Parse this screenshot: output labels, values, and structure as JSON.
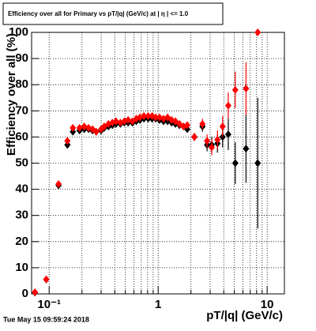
{
  "chart_data": {
    "type": "scatter",
    "title": "Efficiency over all for Primary vs pT/|q| (GeV/c) at | η | <= 1.0",
    "x_label": "pT/|q| (GeV/c)",
    "y_label": "Efficiency over all (%)",
    "timestamp": "Tue May 15 09:59:24 2018",
    "log_x": true,
    "grid": true,
    "xlim": [
      0.069,
      14.4
    ],
    "ylim": [
      0,
      100
    ],
    "xticks": [
      {
        "value": 0.1,
        "label": "10⁻¹"
      },
      1,
      10
    ],
    "x_minor_ticks": [
      0.2,
      0.3,
      0.4,
      0.5,
      0.6,
      0.7,
      0.8,
      0.9,
      2,
      3,
      4,
      5,
      6,
      7,
      8,
      9
    ],
    "yticks": [
      0,
      10,
      20,
      30,
      40,
      50,
      60,
      70,
      80,
      90,
      100
    ],
    "x": [
      0.074,
      0.094,
      0.122,
      0.147,
      0.165,
      0.19,
      0.21,
      0.23,
      0.25,
      0.27,
      0.3,
      0.32,
      0.35,
      0.38,
      0.41,
      0.45,
      0.49,
      0.53,
      0.58,
      0.63,
      0.68,
      0.74,
      0.81,
      0.88,
      0.95,
      1.03,
      1.12,
      1.22,
      1.33,
      1.44,
      1.57,
      1.71,
      1.85,
      2.15,
      2.55,
      2.81,
      3.1,
      3.5,
      3.9,
      4.4,
      5.1,
      6.4,
      8.2
    ],
    "series": [
      {
        "color": "#000000",
        "values": [
          0.5,
          5.5,
          41.5,
          57,
          62,
          62.5,
          63,
          63,
          62.5,
          62,
          62.5,
          63.5,
          64,
          64.5,
          65,
          65,
          65.5,
          65.5,
          65.5,
          66,
          66.5,
          67,
          67,
          67,
          67,
          66.5,
          66,
          66,
          65.5,
          65,
          64.5,
          64,
          63,
          60,
          64,
          57,
          57,
          57.5,
          60,
          61,
          50,
          55.5,
          50
        ],
        "errors": [
          0.5,
          0.8,
          1,
          1,
          0.8,
          0.6,
          0.6,
          0.6,
          0.6,
          0.6,
          0.6,
          0.6,
          0.6,
          0.6,
          0.6,
          0.6,
          0.6,
          0.6,
          0.6,
          0.6,
          0.6,
          0.6,
          0.7,
          0.7,
          0.7,
          0.7,
          0.8,
          0.8,
          0.9,
          1,
          1,
          1.2,
          1.3,
          1.5,
          2,
          2.5,
          3,
          3.5,
          4,
          6,
          8,
          13,
          25
        ]
      },
      {
        "color": "#ff0000",
        "values": [
          0.6,
          5.5,
          42,
          58.5,
          63.5,
          63.5,
          64,
          63.5,
          63,
          62,
          63,
          64,
          65,
          65.5,
          66,
          65.5,
          66,
          66.5,
          66,
          67,
          67.5,
          68,
          68,
          68,
          67.5,
          67.5,
          67,
          67.5,
          66.5,
          66,
          65,
          64,
          64.5,
          60,
          65,
          58.5,
          56,
          59,
          64,
          72,
          78,
          78.5,
          100
        ],
        "errors": [
          0.5,
          0.8,
          1,
          1,
          0.8,
          0.6,
          0.6,
          0.6,
          0.6,
          0.6,
          0.6,
          0.6,
          0.6,
          0.6,
          0.6,
          0.6,
          0.6,
          0.6,
          0.6,
          0.6,
          0.6,
          0.6,
          0.7,
          0.7,
          0.7,
          0.7,
          0.8,
          0.8,
          0.9,
          1,
          1,
          1.2,
          1.3,
          1.5,
          2,
          2.5,
          3,
          3.5,
          4,
          5,
          7,
          10,
          0
        ]
      }
    ]
  }
}
